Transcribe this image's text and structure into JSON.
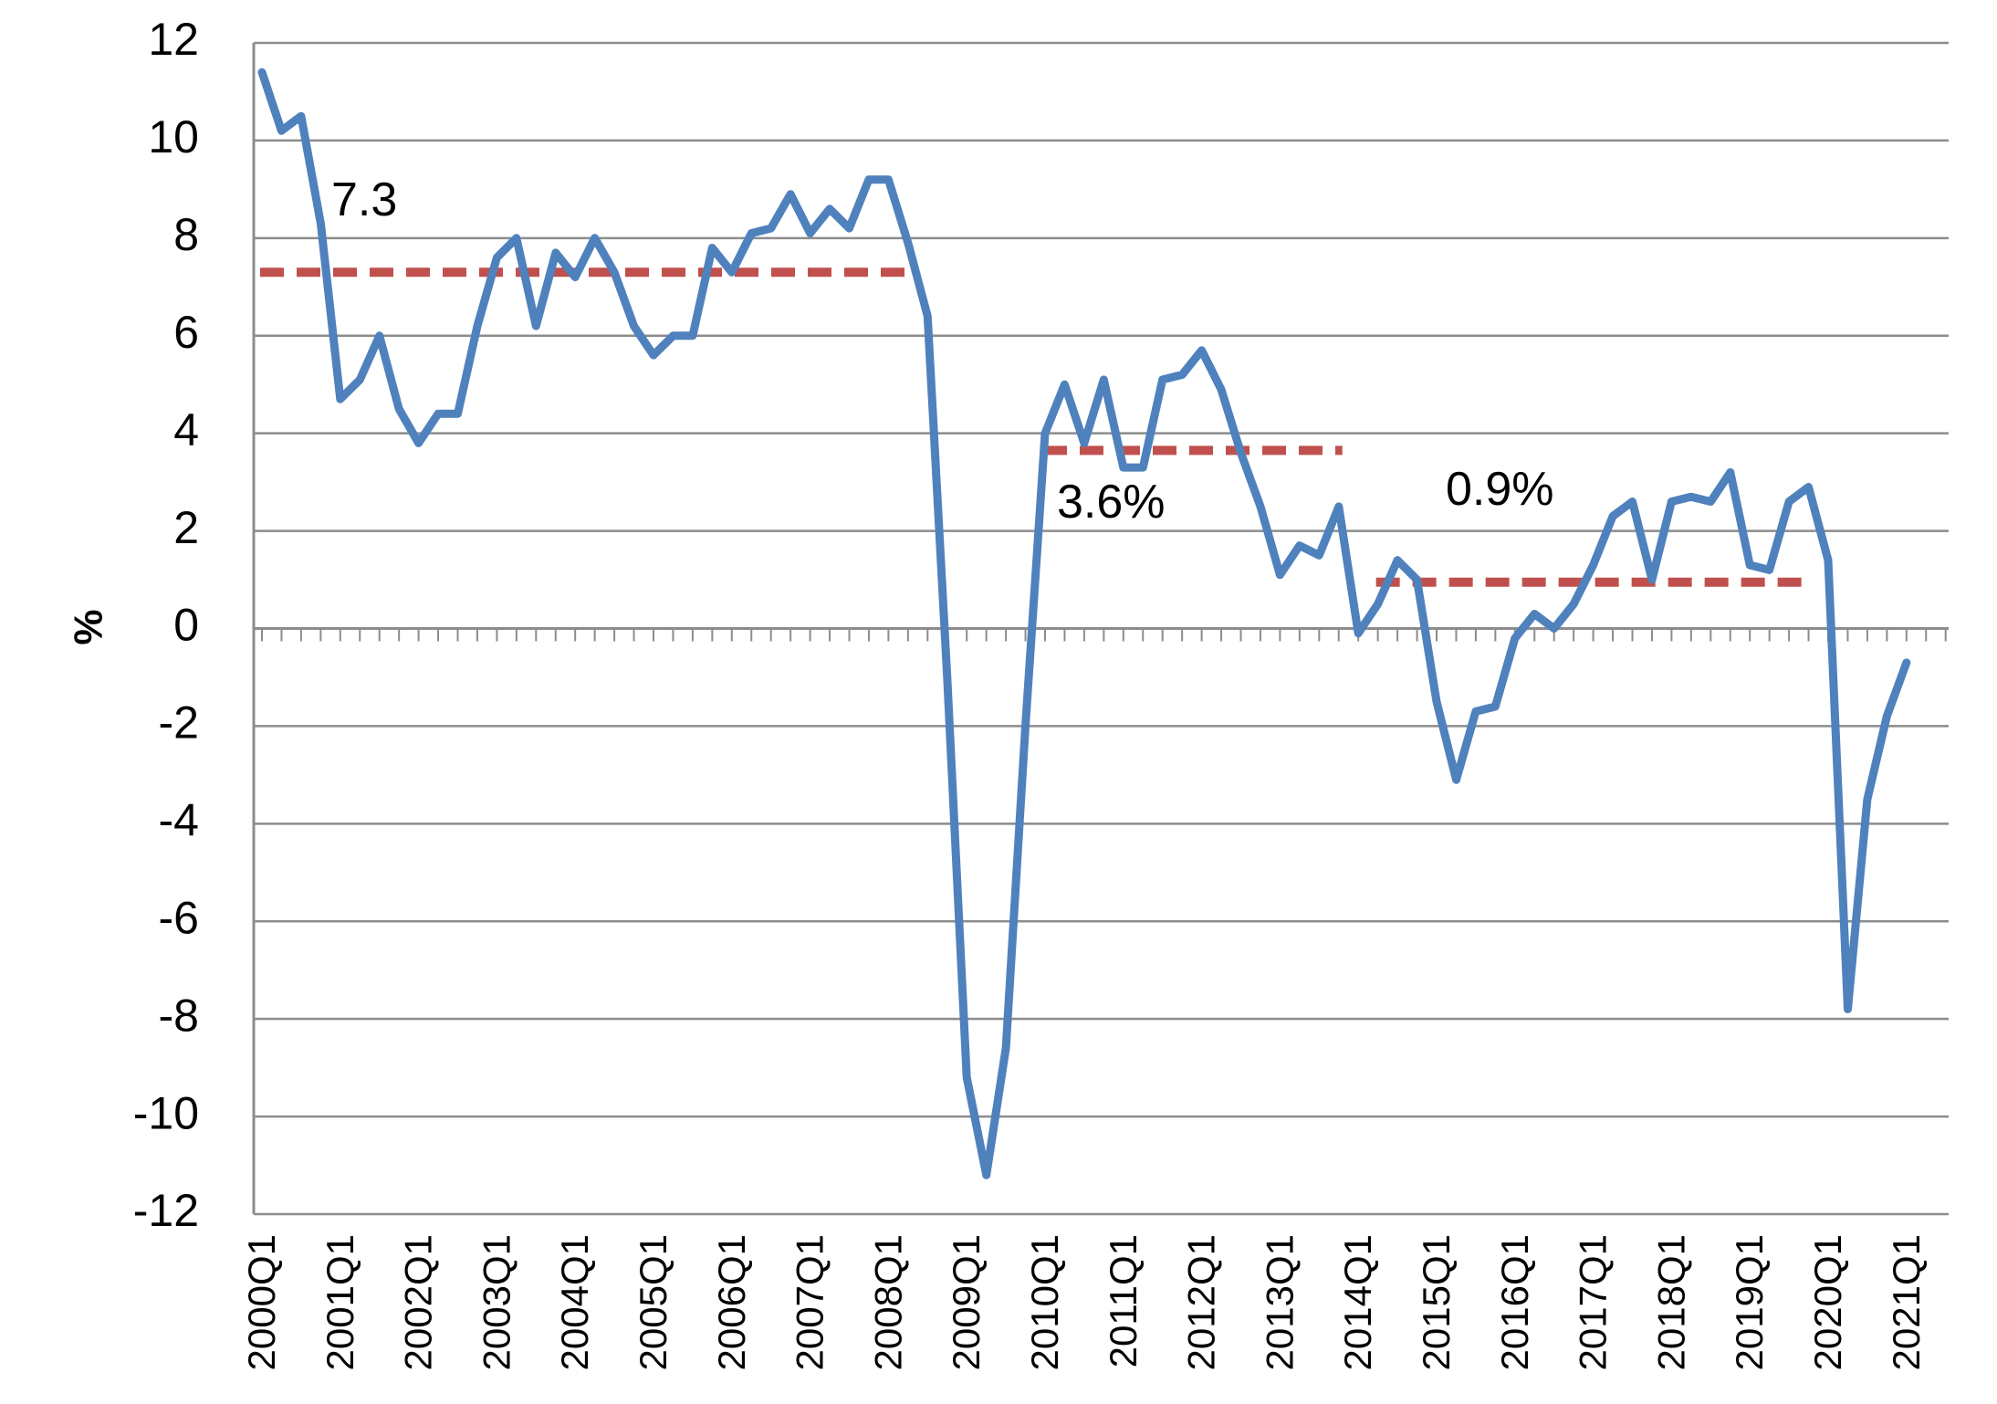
{
  "chart_data": {
    "type": "line",
    "title": "",
    "xlabel": "",
    "ylabel": "%",
    "ylim": [
      -12,
      12
    ],
    "ytick_step": 2,
    "grid": true,
    "legend": "none",
    "colors": {
      "series": "#4F81BD",
      "average": "#C0504D",
      "grid": "#8C8C8C",
      "axis": "#8C8C8C"
    },
    "x_tick_labels": [
      "2000Q1",
      "2001Q1",
      "2002Q1",
      "2003Q1",
      "2004Q1",
      "2005Q1",
      "2006Q1",
      "2007Q1",
      "2008Q1",
      "2009Q1",
      "2010Q1",
      "2011Q1",
      "2012Q1",
      "2013Q1",
      "2014Q1",
      "2015Q1",
      "2016Q1",
      "2017Q1",
      "2018Q1",
      "2019Q1",
      "2020Q1",
      "2021Q1"
    ],
    "quarters_per_year": 4,
    "series": [
      {
        "values": [
          11.4,
          10.2,
          10.5,
          8.3,
          4.7,
          5.1,
          6.0,
          4.5,
          3.8,
          4.4,
          4.4,
          6.2,
          7.6,
          8.0,
          6.2,
          7.7,
          7.2,
          8.0,
          7.3,
          6.2,
          5.6,
          6.0,
          6.0,
          7.8,
          7.3,
          8.1,
          8.2,
          8.9,
          8.1,
          8.6,
          8.2,
          9.2,
          9.2,
          7.9,
          6.4,
          -1.0,
          -9.2,
          -11.2,
          -8.6,
          -2.0,
          4.0,
          5.0,
          3.8,
          5.1,
          3.3,
          3.3,
          5.1,
          5.2,
          5.7,
          4.9,
          3.6,
          2.5,
          1.1,
          1.7,
          1.5,
          2.5,
          -0.1,
          0.5,
          1.4,
          1.0,
          -1.5,
          -3.1,
          -1.7,
          -1.6,
          -0.2,
          0.3,
          0.0,
          0.5,
          1.3,
          2.3,
          2.6,
          1.0,
          2.6,
          2.7,
          2.6,
          3.2,
          1.3,
          1.2,
          2.6,
          2.9,
          1.4,
          -7.8,
          -3.5,
          -1.8,
          -0.7
        ]
      }
    ],
    "averages": [
      {
        "label": "7.3",
        "value": 7.3,
        "start_quarter": "2000Q1",
        "end_quarter": "2008Q2"
      },
      {
        "label": "3.6%",
        "value": 3.65,
        "start_quarter": "2010Q1",
        "end_quarter": "2013Q4"
      },
      {
        "label": "0.9%",
        "value": 0.95,
        "start_quarter": "2014Q2",
        "end_quarter": "2019Q4"
      }
    ]
  }
}
